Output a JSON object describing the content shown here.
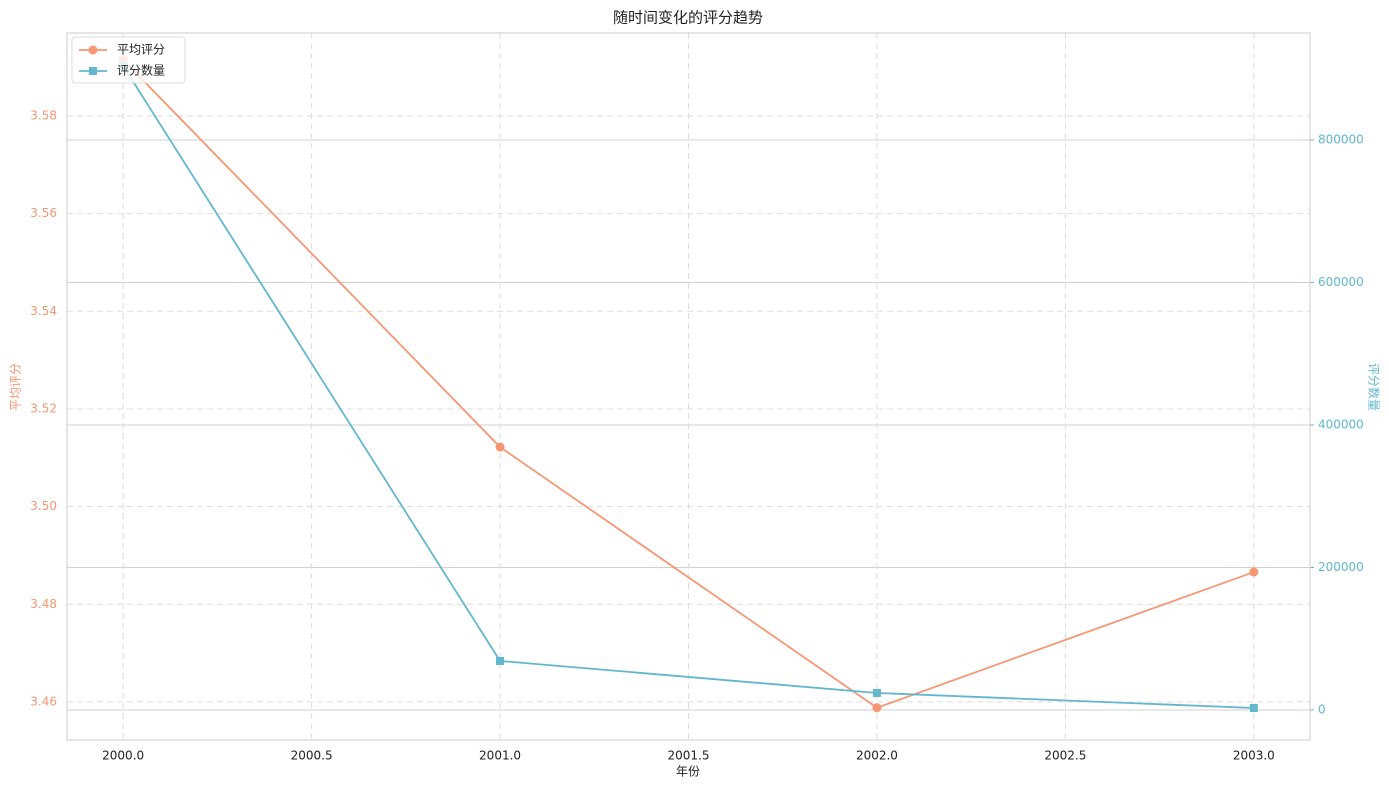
{
  "chart_data": {
    "type": "line",
    "title": "随时间变化的评分趋势",
    "x_label": "年份",
    "y_label": "平均评分",
    "y2_label": "评分数量",
    "x": [
      2000,
      2001,
      2002,
      2003
    ],
    "series": [
      {
        "name": "平均评分",
        "color": "#f79673",
        "marker": "circle",
        "values": [
          3.5915,
          3.5122,
          3.4588,
          3.4866
        ]
      },
      {
        "name": "评分数量",
        "color": "#62b7cf",
        "marker": "square",
        "axis": "y2",
        "values": [
          904000,
          68800,
          23900,
          2800
        ]
      }
    ],
    "xlim": [
      1999.851,
      2003.149
    ],
    "xticks": [
      {
        "value": 2000,
        "label": "2000.0"
      },
      {
        "value": 2000.5,
        "label": "2000.5"
      },
      {
        "value": 2001,
        "label": "2001.0"
      },
      {
        "value": 2001.5,
        "label": "2001.5"
      },
      {
        "value": 2002,
        "label": "2002.0"
      },
      {
        "value": 2002.5,
        "label": "2002.5"
      },
      {
        "value": 2003,
        "label": "2003.0"
      }
    ],
    "ylim": [
      3.4522,
      3.597
    ],
    "yticks": [
      3.46,
      3.48,
      {
        "value": 3.5,
        "label": "3.50"
      },
      3.52,
      3.54,
      3.56,
      3.58
    ],
    "y2lim": [
      -42105,
      950175
    ],
    "y2ticks": [
      0,
      200000,
      400000,
      600000,
      800000
    ],
    "grid": true,
    "legend": "upper-left"
  }
}
